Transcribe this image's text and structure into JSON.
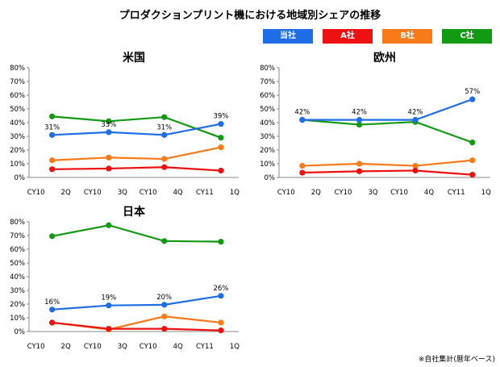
{
  "title": "プロダクションプリント機における地域別シェアの推移",
  "note": "※自社集計(暦年ベース)",
  "legend": [
    {
      "name": "当社",
      "color": "#1f6ee8"
    },
    {
      "name": "A社",
      "color": "#ee1111"
    },
    {
      "name": "B社",
      "color": "#f97a18"
    },
    {
      "name": "C社",
      "color": "#129a12"
    }
  ],
  "chart_data": [
    {
      "type": "line",
      "title": "米国",
      "categories": [
        "CY10　2Q",
        "CY10　3Q",
        "CY10　4Q",
        "CY11　1Q"
      ],
      "ylim": [
        0,
        80
      ],
      "yticks": [
        "0%",
        "10%",
        "20%",
        "30%",
        "40%",
        "50%",
        "60%",
        "70%",
        "80%"
      ],
      "series": [
        {
          "name": "当社",
          "values": [
            31,
            33,
            31,
            39
          ],
          "labels": [
            "31%",
            "33%",
            "31%",
            "39%"
          ]
        },
        {
          "name": "A社",
          "values": [
            6,
            6.5,
            7.5,
            5
          ]
        },
        {
          "name": "B社",
          "values": [
            12.5,
            14.5,
            13.5,
            22
          ]
        },
        {
          "name": "C社",
          "values": [
            44.5,
            41,
            44,
            29
          ]
        }
      ]
    },
    {
      "type": "line",
      "title": "欧州",
      "categories": [
        "CY10　2Q",
        "CY10　3Q",
        "CY10　4Q",
        "CY11　1Q"
      ],
      "ylim": [
        0,
        80
      ],
      "yticks": [
        "0%",
        "10%",
        "20%",
        "30%",
        "40%",
        "50%",
        "60%",
        "70%",
        "80%"
      ],
      "series": [
        {
          "name": "当社",
          "values": [
            42,
            42,
            42,
            57
          ],
          "labels": [
            "42%",
            "42%",
            "42%",
            "57%"
          ]
        },
        {
          "name": "A社",
          "values": [
            3.5,
            4.5,
            5,
            2
          ]
        },
        {
          "name": "B社",
          "values": [
            8.5,
            10,
            8.5,
            12.5
          ]
        },
        {
          "name": "C社",
          "values": [
            42,
            38.5,
            40.5,
            25.5
          ]
        }
      ]
    },
    {
      "type": "line",
      "title": "日本",
      "categories": [
        "CY10　2Q",
        "CY10　3Q",
        "CY10　4Q",
        "CY11　1Q"
      ],
      "ylim": [
        0,
        80
      ],
      "yticks": [
        "0%",
        "10%",
        "20%",
        "30%",
        "40%",
        "50%",
        "60%",
        "70%",
        "80%"
      ],
      "series": [
        {
          "name": "当社",
          "values": [
            16,
            19,
            19.5,
            26
          ],
          "labels": [
            "16%",
            "19%",
            "20%",
            "26%"
          ]
        },
        {
          "name": "A社",
          "values": [
            6.5,
            2,
            2,
            0.8
          ]
        },
        {
          "name": "B社",
          "values": [
            6.5,
            1.5,
            11,
            6.5
          ]
        },
        {
          "name": "C社",
          "values": [
            69.5,
            77.5,
            66,
            65.5
          ]
        }
      ]
    }
  ]
}
